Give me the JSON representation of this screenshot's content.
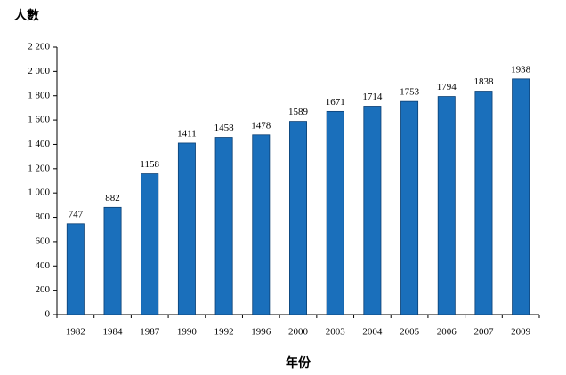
{
  "chart_data": {
    "type": "bar",
    "y_label": "人數",
    "x_label": "年份",
    "categories": [
      "1982",
      "1984",
      "1987",
      "1990",
      "1992",
      "1996",
      "2000",
      "2003",
      "2004",
      "2005",
      "2006",
      "2007",
      "2009"
    ],
    "values": [
      747,
      882,
      1158,
      1411,
      1458,
      1478,
      1589,
      1671,
      1714,
      1753,
      1794,
      1838,
      1938
    ],
    "color": "#1a6fbb",
    "ylim": [
      0,
      2200
    ],
    "yticks": [
      0,
      200,
      400,
      600,
      800,
      {
        "value": 1000,
        "label": "1 000"
      },
      {
        "value": 1200,
        "label": "1 200"
      },
      {
        "value": 1400,
        "label": "1 400"
      },
      {
        "value": 1600,
        "label": "1 600"
      },
      {
        "value": 1800,
        "label": "1 800"
      },
      {
        "value": 2000,
        "label": "2 000"
      },
      {
        "value": 2200,
        "label": "2 200"
      }
    ],
    "grid": false
  }
}
